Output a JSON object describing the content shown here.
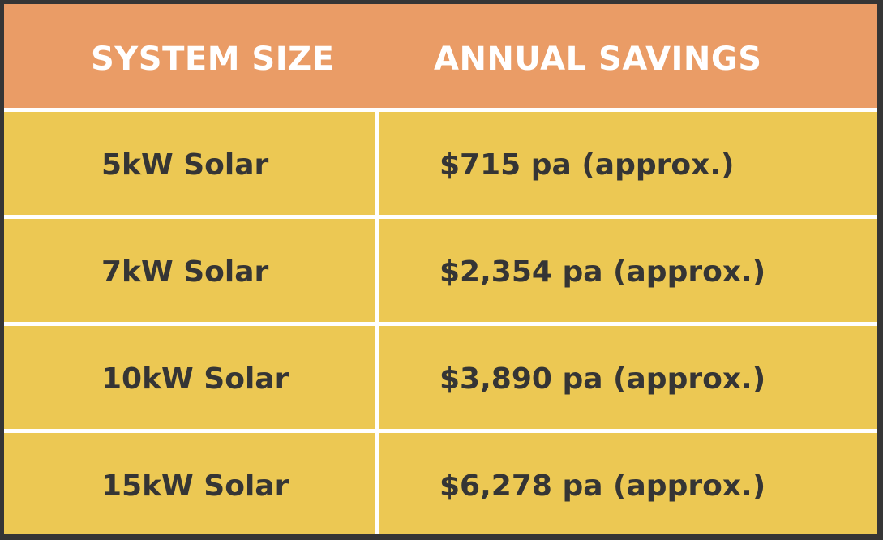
{
  "table": {
    "headers": {
      "system_size": "SYSTEM SIZE",
      "annual_savings": "ANNUAL SAVINGS"
    },
    "rows": [
      {
        "size": "5kW Solar",
        "savings": "$715 pa (approx.)"
      },
      {
        "size": "7kW Solar",
        "savings": "$2,354 pa (approx.)"
      },
      {
        "size": "10kW Solar",
        "savings": "$3,890 pa (approx.)"
      },
      {
        "size": "15kW Solar",
        "savings": "$6,278 pa (approx.)"
      }
    ]
  },
  "colors": {
    "header_bg": "#ea9c66",
    "cell_bg": "#ecc853",
    "border": "#353535",
    "text_dark": "#353535",
    "text_light": "#ffffff"
  }
}
